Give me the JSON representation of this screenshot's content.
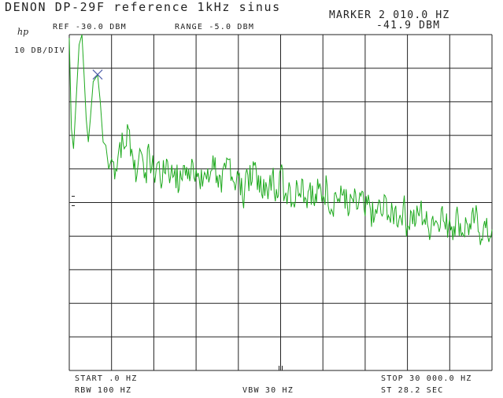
{
  "header": {
    "title": "DENON DP-29F reference 1kHz sinus",
    "brand": "hp",
    "scale": "10 DB/DIV",
    "ref": "REF -30.0 DBM",
    "range": "RANGE -5.0 DBM",
    "marker_label": "MARKER 2 010.0 HZ",
    "marker_value": "-41.9 DBM"
  },
  "footer": {
    "start": "START .0 HZ",
    "stop": "STOP 30 000.0 HZ",
    "rbw": "RBW 100 HZ",
    "vbw": "VBW 30 HZ",
    "sweep": "ST 28.2 SEC"
  },
  "colors": {
    "trace": "#1faa1f",
    "grid": "#222222",
    "marker": "#4a5aa8"
  },
  "chart_data": {
    "type": "line",
    "x_unit": "Hz",
    "y_unit": "dBm",
    "xlim": [
      0,
      30000
    ],
    "ylim": [
      -130,
      -30
    ],
    "x_divisions": 10,
    "y_divisions": 10,
    "grid": true,
    "marker": {
      "x": 2010,
      "y": -41.9
    },
    "series": [
      {
        "points": [
          [
            0,
            -31
          ],
          [
            150,
            -58
          ],
          [
            300,
            -64
          ],
          [
            480,
            -50
          ],
          [
            700,
            -33
          ],
          [
            900,
            -30
          ],
          [
            1050,
            -42
          ],
          [
            1200,
            -55
          ],
          [
            1350,
            -62
          ],
          [
            1500,
            -55
          ],
          [
            1700,
            -44
          ],
          [
            2010,
            -42
          ],
          [
            2200,
            -50
          ],
          [
            2400,
            -62
          ],
          [
            2600,
            -63
          ],
          [
            2800,
            -70
          ],
          [
            3000,
            -67
          ],
          [
            3300,
            -70
          ],
          [
            3600,
            -62
          ],
          [
            3900,
            -64
          ],
          [
            4200,
            -58
          ],
          [
            4500,
            -66
          ],
          [
            4800,
            -72
          ],
          [
            5000,
            -64
          ],
          [
            5100,
            -65
          ],
          [
            5400,
            -71
          ],
          [
            5700,
            -66
          ],
          [
            6000,
            -72
          ],
          [
            6300,
            -68
          ],
          [
            6600,
            -74
          ],
          [
            6900,
            -67
          ],
          [
            7200,
            -72
          ],
          [
            7500,
            -70
          ],
          [
            7800,
            -76
          ],
          [
            8100,
            -69
          ],
          [
            8400,
            -73
          ],
          [
            8700,
            -67
          ],
          [
            9000,
            -70
          ],
          [
            9300,
            -76
          ],
          [
            9600,
            -71
          ],
          [
            9900,
            -74
          ],
          [
            10200,
            -66
          ],
          [
            10500,
            -72
          ],
          [
            10800,
            -77
          ],
          [
            11100,
            -70
          ],
          [
            11400,
            -67
          ],
          [
            11700,
            -74
          ],
          [
            12000,
            -72
          ],
          [
            12300,
            -79
          ],
          [
            12600,
            -70
          ],
          [
            12900,
            -75
          ],
          [
            13200,
            -68
          ],
          [
            13500,
            -77
          ],
          [
            13800,
            -73
          ],
          [
            14100,
            -79
          ],
          [
            14400,
            -72
          ],
          [
            14700,
            -76
          ],
          [
            15000,
            -70
          ],
          [
            15300,
            -78
          ],
          [
            15600,
            -74
          ],
          [
            15900,
            -80
          ],
          [
            16200,
            -75
          ],
          [
            16500,
            -73
          ],
          [
            16800,
            -79
          ],
          [
            17100,
            -74
          ],
          [
            17400,
            -81
          ],
          [
            17700,
            -76
          ],
          [
            18000,
            -78
          ],
          [
            18300,
            -75
          ],
          [
            18600,
            -82
          ],
          [
            18900,
            -77
          ],
          [
            19200,
            -80
          ],
          [
            19500,
            -76
          ],
          [
            19800,
            -84
          ],
          [
            20100,
            -79
          ],
          [
            20400,
            -82
          ],
          [
            20700,
            -78
          ],
          [
            21000,
            -84
          ],
          [
            21300,
            -80
          ],
          [
            21600,
            -86
          ],
          [
            21900,
            -81
          ],
          [
            22200,
            -84
          ],
          [
            22500,
            -79
          ],
          [
            22800,
            -86
          ],
          [
            23100,
            -82
          ],
          [
            23400,
            -85
          ],
          [
            23700,
            -81
          ],
          [
            24000,
            -87
          ],
          [
            24300,
            -83
          ],
          [
            24600,
            -86
          ],
          [
            24900,
            -82
          ],
          [
            25200,
            -85
          ],
          [
            25500,
            -88
          ],
          [
            25800,
            -84
          ],
          [
            26100,
            -86
          ],
          [
            26400,
            -82
          ],
          [
            26700,
            -88
          ],
          [
            27000,
            -85
          ],
          [
            27300,
            -87
          ],
          [
            27600,
            -84
          ],
          [
            27900,
            -89
          ],
          [
            28200,
            -86
          ],
          [
            28500,
            -88
          ],
          [
            28800,
            -84
          ],
          [
            29100,
            -89
          ],
          [
            29400,
            -87
          ],
          [
            29700,
            -90
          ],
          [
            30000,
            -88
          ]
        ]
      }
    ]
  }
}
